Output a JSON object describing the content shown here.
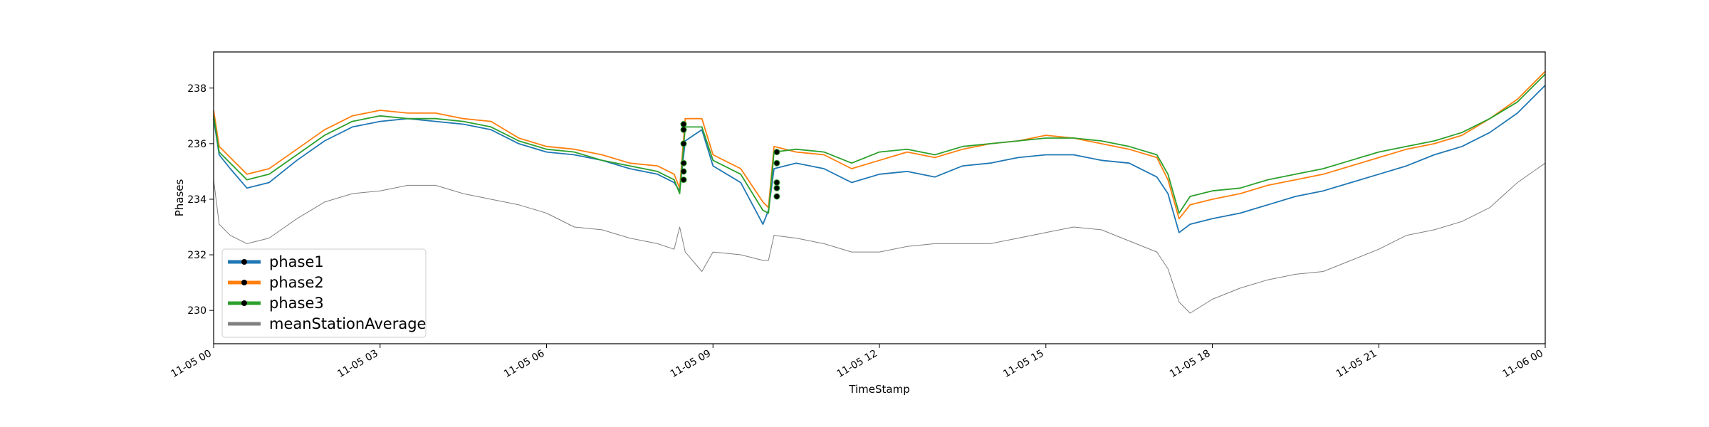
{
  "chart_data": {
    "type": "line",
    "title": "",
    "xlabel": "TimeStamp",
    "ylabel": "Phases",
    "xlim": [
      "11-05 00",
      "11-06 00"
    ],
    "ylim": [
      228.8,
      239.3
    ],
    "grid": false,
    "legend_position": "lower-left",
    "x_ticks": [
      "11-05 00",
      "11-05 03",
      "11-05 06",
      "11-05 09",
      "11-05 12",
      "11-05 15",
      "11-05 18",
      "11-05 21",
      "11-06 00"
    ],
    "x_tick_hours": [
      0,
      3,
      6,
      9,
      12,
      15,
      18,
      21,
      24
    ],
    "y_ticks": [
      230,
      232,
      234,
      236,
      238
    ],
    "x_hours": [
      0,
      0.1,
      0.3,
      0.6,
      1,
      1.5,
      2,
      2.5,
      3,
      3.5,
      4,
      4.5,
      5,
      5.5,
      6,
      6.5,
      7,
      7.5,
      8,
      8.3,
      8.4,
      8.5,
      8.8,
      9,
      9.5,
      9.9,
      10,
      10.1,
      10.5,
      11,
      11.5,
      12,
      12.5,
      13,
      13.5,
      14,
      14.5,
      15,
      15.5,
      16,
      16.5,
      17,
      17.2,
      17.4,
      17.6,
      18,
      18.5,
      19,
      19.5,
      20,
      20.5,
      21,
      21.5,
      22,
      22.5,
      23,
      23.5,
      24
    ],
    "series": [
      {
        "name": "phase1",
        "color": "#1f77b4",
        "values": [
          236.9,
          235.6,
          235.1,
          234.4,
          234.6,
          235.4,
          236.1,
          236.6,
          236.8,
          236.9,
          236.8,
          236.7,
          236.5,
          236.0,
          235.7,
          235.6,
          235.4,
          235.1,
          234.9,
          234.6,
          234.3,
          236.1,
          236.5,
          235.2,
          234.6,
          233.1,
          233.6,
          235.1,
          235.3,
          235.1,
          234.6,
          234.9,
          235.0,
          234.8,
          235.2,
          235.3,
          235.5,
          235.6,
          235.6,
          235.4,
          235.3,
          234.8,
          234.2,
          232.8,
          233.1,
          233.3,
          233.5,
          233.8,
          234.1,
          234.3,
          234.6,
          234.9,
          235.2,
          235.6,
          235.9,
          236.4,
          237.1,
          238.1
        ]
      },
      {
        "name": "phase2",
        "color": "#ff7f0e",
        "values": [
          237.2,
          235.9,
          235.5,
          234.9,
          235.1,
          235.8,
          236.5,
          237.0,
          237.2,
          237.1,
          237.1,
          236.9,
          236.8,
          236.2,
          235.9,
          235.8,
          235.6,
          235.3,
          235.2,
          234.9,
          234.4,
          236.9,
          236.9,
          235.6,
          235.1,
          233.9,
          233.7,
          235.9,
          235.7,
          235.6,
          235.1,
          235.4,
          235.7,
          235.5,
          235.8,
          236.0,
          236.1,
          236.3,
          236.2,
          236.0,
          235.8,
          235.5,
          234.7,
          233.3,
          233.8,
          234.0,
          234.2,
          234.5,
          234.7,
          234.9,
          235.2,
          235.5,
          235.8,
          236.0,
          236.3,
          236.9,
          237.6,
          238.6
        ]
      },
      {
        "name": "phase3",
        "color": "#2ca02c",
        "values": [
          237.0,
          235.7,
          235.3,
          234.7,
          234.9,
          235.6,
          236.3,
          236.8,
          237.0,
          236.9,
          236.9,
          236.8,
          236.6,
          236.1,
          235.8,
          235.7,
          235.4,
          235.2,
          235.0,
          234.7,
          234.2,
          236.6,
          236.6,
          235.4,
          234.9,
          233.6,
          233.5,
          235.7,
          235.8,
          235.7,
          235.3,
          235.7,
          235.8,
          235.6,
          235.9,
          236.0,
          236.1,
          236.2,
          236.2,
          236.1,
          235.9,
          235.6,
          234.9,
          233.5,
          234.1,
          234.3,
          234.4,
          234.7,
          234.9,
          235.1,
          235.4,
          235.7,
          235.9,
          236.1,
          236.4,
          236.9,
          237.5,
          238.5
        ]
      },
      {
        "name": "meanStationAverage",
        "color": "#808080",
        "values": [
          234.7,
          233.1,
          232.7,
          232.4,
          232.6,
          233.3,
          233.9,
          234.2,
          234.3,
          234.5,
          234.5,
          234.2,
          234.0,
          233.8,
          233.5,
          233.0,
          232.9,
          232.6,
          232.4,
          232.2,
          233.0,
          232.1,
          231.4,
          232.1,
          232.0,
          231.8,
          231.8,
          232.7,
          232.6,
          232.4,
          232.1,
          232.1,
          232.3,
          232.4,
          232.4,
          232.4,
          232.6,
          232.8,
          233.0,
          232.9,
          232.5,
          232.1,
          231.5,
          230.3,
          229.9,
          230.4,
          230.8,
          231.1,
          231.3,
          231.4,
          231.8,
          232.2,
          232.7,
          232.9,
          233.2,
          233.7,
          234.6,
          235.3
        ]
      }
    ],
    "legend": [
      {
        "name": "phase1",
        "color": "#1f77b4",
        "marker": true
      },
      {
        "name": "phase2",
        "color": "#ff7f0e",
        "marker": true
      },
      {
        "name": "phase3",
        "color": "#2ca02c",
        "marker": true
      },
      {
        "name": "meanStationAverage",
        "color": "#808080",
        "marker": false
      }
    ],
    "marker_points": [
      {
        "x_hours": 8.47,
        "values": [
          236.7,
          236.5,
          236.0,
          235.3,
          235.0,
          234.7
        ]
      },
      {
        "x_hours": 10.15,
        "values": [
          235.7,
          235.3,
          234.6,
          234.4,
          234.1
        ]
      }
    ],
    "marker_color": "#000000"
  }
}
